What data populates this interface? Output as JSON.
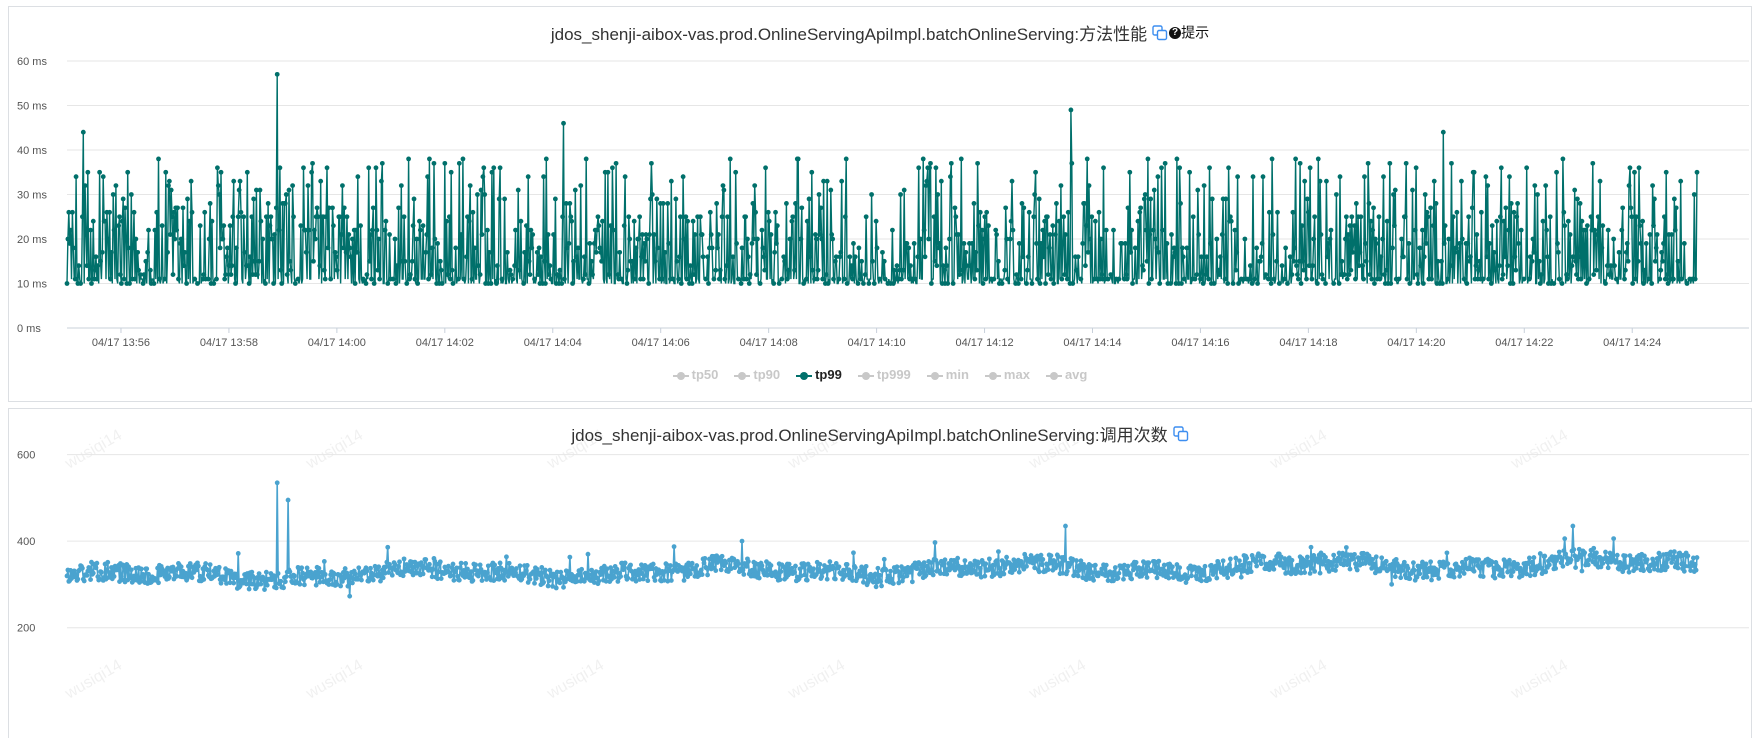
{
  "panel1": {
    "title": "jdos_shenji-aibox-vas.prod.OnlineServingApiImpl.batchOnlineServing:方法性能",
    "hint_label": "提示",
    "copy_icon": "copy-icon",
    "hint_icon": "question-circle-icon"
  },
  "panel2": {
    "title": "jdos_shenji-aibox-vas.prod.OnlineServingApiImpl.batchOnlineServing:调用次数",
    "copy_icon": "copy-icon",
    "watermark": "wusiqi14"
  },
  "colors": {
    "tp99": "#00706b",
    "calls": "#4aa3cf",
    "copy": "#3d8ef0",
    "legend_inactive": "#c8c8c8"
  },
  "chart_data": [
    {
      "type": "line",
      "title": "jdos_shenji-aibox-vas.prod.OnlineServingApiImpl.batchOnlineServing:方法性能",
      "unit": "ms",
      "ylim": [
        0,
        60
      ],
      "yticks": [
        0,
        10,
        20,
        30,
        40,
        50,
        60
      ],
      "ytick_labels": [
        "0 ms",
        "10 ms",
        "20 ms",
        "30 ms",
        "40 ms",
        "50 ms",
        "60 ms"
      ],
      "xlim_minutes": [
        "13:54:58",
        "14:25:10"
      ],
      "xtick_labels": [
        "04/17 13:56",
        "04/17 13:58",
        "04/17 14:00",
        "04/17 14:02",
        "04/17 14:04",
        "04/17 14:06",
        "04/17 14:08",
        "04/17 14:10",
        "04/17 14:12",
        "04/17 14:14",
        "04/17 14:16",
        "04/17 14:18",
        "04/17 14:20",
        "04/17 14:22",
        "04/17 14:24"
      ],
      "xtick_minutes": [
        1,
        3,
        5,
        7,
        9,
        11,
        13,
        15,
        17,
        19,
        21,
        23,
        25,
        27,
        29
      ],
      "grid": true,
      "legend": [
        {
          "name": "tp50",
          "active": false
        },
        {
          "name": "tp90",
          "active": false
        },
        {
          "name": "tp99",
          "active": true
        },
        {
          "name": "tp999",
          "active": false
        },
        {
          "name": "min",
          "active": false
        },
        {
          "name": "max",
          "active": false
        },
        {
          "name": "avg",
          "active": false
        }
      ],
      "series_name": "tp99",
      "points": 1800,
      "min": 10,
      "max": 57,
      "peaks": [
        {
          "minute": 0.3,
          "value": 44
        },
        {
          "minute": 3.9,
          "value": 57
        },
        {
          "minute": 9.2,
          "value": 46
        },
        {
          "minute": 18.6,
          "value": 49
        },
        {
          "minute": 25.5,
          "value": 44
        }
      ]
    },
    {
      "type": "line",
      "title": "jdos_shenji-aibox-vas.prod.OnlineServingApiImpl.batchOnlineServing:调用次数",
      "ylim": [
        100,
        650
      ],
      "yticks": [
        200,
        400,
        600
      ],
      "ytick_labels": [
        "200",
        "400",
        "600"
      ],
      "grid": true,
      "series_name": "calls",
      "points": 1800,
      "typical_range": [
        290,
        380
      ],
      "min": 255,
      "max": 535,
      "peaks": [
        {
          "minute": 3.9,
          "value": 535
        },
        {
          "minute": 4.1,
          "value": 495
        },
        {
          "minute": 18.5,
          "value": 435
        },
        {
          "minute": 27.9,
          "value": 435
        }
      ]
    }
  ]
}
